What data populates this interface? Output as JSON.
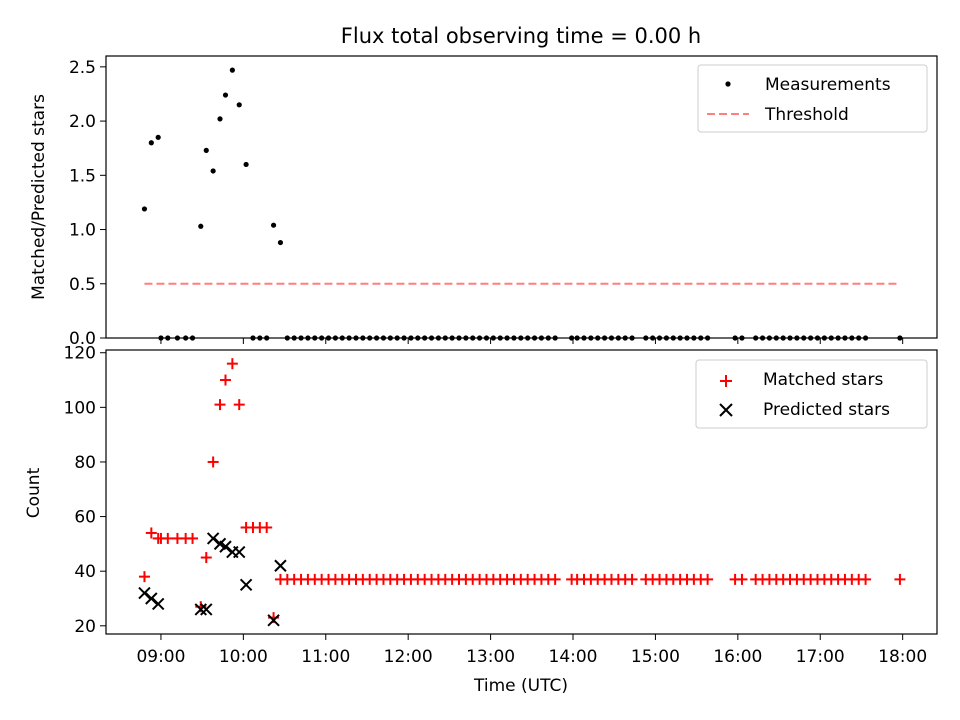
{
  "chart_data": [
    {
      "type": "scatter",
      "title": "Flux total observing time = 0.00 h",
      "xlabel": "",
      "ylabel": "Matched/Predicted stars",
      "xlim": [
        "08:20",
        "18:25"
      ],
      "ylim": [
        0,
        2.6
      ],
      "yticks": [
        "0.0",
        "0.5",
        "1.0",
        "1.5",
        "2.0",
        "2.5"
      ],
      "legend": "top-right",
      "series": [
        {
          "name": "Measurements",
          "color": "#000000",
          "marker": "dot",
          "points": [
            [
              "08:48",
              1.19
            ],
            [
              "08:53",
              1.8
            ],
            [
              "08:58",
              1.85
            ],
            [
              "09:00",
              0
            ],
            [
              "09:05",
              0
            ],
            [
              "09:12",
              0
            ],
            [
              "09:18",
              0
            ],
            [
              "09:23",
              0
            ],
            [
              "09:29",
              1.03
            ],
            [
              "09:33",
              1.73
            ],
            [
              "09:38",
              1.54
            ],
            [
              "09:43",
              2.02
            ],
            [
              "09:47",
              2.24
            ],
            [
              "09:52",
              2.47
            ],
            [
              "09:57",
              2.15
            ],
            [
              "10:02",
              1.6
            ],
            [
              "10:07",
              0
            ],
            [
              "10:12",
              0
            ],
            [
              "10:17",
              0
            ],
            [
              "10:22",
              1.04
            ],
            [
              "10:27",
              0.88
            ],
            [
              "10:32",
              0
            ],
            [
              "10:37",
              0
            ],
            [
              "10:42",
              0
            ],
            [
              "10:47",
              0
            ],
            [
              "10:52",
              0
            ],
            [
              "10:57",
              0
            ],
            [
              "11:02",
              0
            ],
            [
              "11:07",
              0
            ],
            [
              "11:12",
              0
            ],
            [
              "11:17",
              0
            ],
            [
              "11:22",
              0
            ],
            [
              "11:27",
              0
            ],
            [
              "11:32",
              0
            ],
            [
              "11:37",
              0
            ],
            [
              "11:42",
              0
            ],
            [
              "11:47",
              0
            ],
            [
              "11:52",
              0
            ],
            [
              "11:57",
              0
            ],
            [
              "12:02",
              0
            ],
            [
              "12:07",
              0
            ],
            [
              "12:12",
              0
            ],
            [
              "12:17",
              0
            ],
            [
              "12:22",
              0
            ],
            [
              "12:27",
              0
            ],
            [
              "12:32",
              0
            ],
            [
              "12:37",
              0
            ],
            [
              "12:42",
              0
            ],
            [
              "12:47",
              0
            ],
            [
              "12:52",
              0
            ],
            [
              "12:57",
              0
            ],
            [
              "13:02",
              0
            ],
            [
              "13:07",
              0
            ],
            [
              "13:12",
              0
            ],
            [
              "13:17",
              0
            ],
            [
              "13:22",
              0
            ],
            [
              "13:27",
              0
            ],
            [
              "13:32",
              0
            ],
            [
              "13:37",
              0
            ],
            [
              "13:42",
              0
            ],
            [
              "13:47",
              0
            ],
            [
              "13:59",
              0
            ],
            [
              "14:03",
              0
            ],
            [
              "14:08",
              0
            ],
            [
              "14:13",
              0
            ],
            [
              "14:18",
              0
            ],
            [
              "14:23",
              0
            ],
            [
              "14:28",
              0
            ],
            [
              "14:33",
              0
            ],
            [
              "14:38",
              0
            ],
            [
              "14:43",
              0
            ],
            [
              "14:53",
              0
            ],
            [
              "14:58",
              0
            ],
            [
              "15:03",
              0
            ],
            [
              "15:08",
              0
            ],
            [
              "15:13",
              0
            ],
            [
              "15:18",
              0
            ],
            [
              "15:23",
              0
            ],
            [
              "15:28",
              0
            ],
            [
              "15:33",
              0
            ],
            [
              "15:38",
              0
            ],
            [
              "15:58",
              0
            ],
            [
              "16:03",
              0
            ],
            [
              "16:13",
              0
            ],
            [
              "16:18",
              0
            ],
            [
              "16:23",
              0
            ],
            [
              "16:28",
              0
            ],
            [
              "16:33",
              0
            ],
            [
              "16:38",
              0
            ],
            [
              "16:43",
              0
            ],
            [
              "16:48",
              0
            ],
            [
              "16:53",
              0
            ],
            [
              "16:58",
              0
            ],
            [
              "17:03",
              0
            ],
            [
              "17:08",
              0
            ],
            [
              "17:13",
              0
            ],
            [
              "17:18",
              0
            ],
            [
              "17:23",
              0
            ],
            [
              "17:28",
              0
            ],
            [
              "17:33",
              0
            ],
            [
              "17:58",
              0
            ]
          ]
        },
        {
          "name": "Threshold",
          "color": "#ff7f7f",
          "style": "dashed-line",
          "points": [
            [
              "08:48",
              0.5
            ],
            [
              "17:58",
              0.5
            ]
          ]
        }
      ]
    },
    {
      "type": "scatter",
      "title": "",
      "xlabel": "Time (UTC)",
      "ylabel": "Count",
      "xlim": [
        "08:20",
        "18:25"
      ],
      "ylim": [
        17,
        121
      ],
      "yticks": [
        "20",
        "40",
        "60",
        "80",
        "100",
        "120"
      ],
      "xticks": [
        "09:00",
        "10:00",
        "11:00",
        "12:00",
        "13:00",
        "14:00",
        "15:00",
        "16:00",
        "17:00",
        "18:00"
      ],
      "legend": "top-right",
      "series": [
        {
          "name": "Matched stars",
          "color": "#ff0000",
          "marker": "plus",
          "points": [
            [
              "08:48",
              38
            ],
            [
              "08:53",
              54
            ],
            [
              "08:58",
              52
            ],
            [
              "09:00",
              52
            ],
            [
              "09:05",
              52
            ],
            [
              "09:12",
              52
            ],
            [
              "09:18",
              52
            ],
            [
              "09:23",
              52
            ],
            [
              "09:29",
              27
            ],
            [
              "09:33",
              45
            ],
            [
              "09:38",
              80
            ],
            [
              "09:43",
              101
            ],
            [
              "09:47",
              110
            ],
            [
              "09:52",
              116
            ],
            [
              "09:57",
              101
            ],
            [
              "10:02",
              56
            ],
            [
              "10:07",
              56
            ],
            [
              "10:12",
              56
            ],
            [
              "10:17",
              56
            ],
            [
              "10:22",
              23
            ],
            [
              "10:27",
              37
            ],
            [
              "10:32",
              37
            ],
            [
              "10:37",
              37
            ],
            [
              "10:42",
              37
            ],
            [
              "10:47",
              37
            ],
            [
              "10:52",
              37
            ],
            [
              "10:57",
              37
            ],
            [
              "11:02",
              37
            ],
            [
              "11:07",
              37
            ],
            [
              "11:12",
              37
            ],
            [
              "11:17",
              37
            ],
            [
              "11:22",
              37
            ],
            [
              "11:27",
              37
            ],
            [
              "11:32",
              37
            ],
            [
              "11:37",
              37
            ],
            [
              "11:42",
              37
            ],
            [
              "11:47",
              37
            ],
            [
              "11:52",
              37
            ],
            [
              "11:57",
              37
            ],
            [
              "12:02",
              37
            ],
            [
              "12:07",
              37
            ],
            [
              "12:12",
              37
            ],
            [
              "12:17",
              37
            ],
            [
              "12:22",
              37
            ],
            [
              "12:27",
              37
            ],
            [
              "12:32",
              37
            ],
            [
              "12:37",
              37
            ],
            [
              "12:42",
              37
            ],
            [
              "12:47",
              37
            ],
            [
              "12:52",
              37
            ],
            [
              "12:57",
              37
            ],
            [
              "13:02",
              37
            ],
            [
              "13:07",
              37
            ],
            [
              "13:12",
              37
            ],
            [
              "13:17",
              37
            ],
            [
              "13:22",
              37
            ],
            [
              "13:27",
              37
            ],
            [
              "13:32",
              37
            ],
            [
              "13:37",
              37
            ],
            [
              "13:42",
              37
            ],
            [
              "13:47",
              37
            ],
            [
              "13:59",
              37
            ],
            [
              "14:03",
              37
            ],
            [
              "14:08",
              37
            ],
            [
              "14:13",
              37
            ],
            [
              "14:18",
              37
            ],
            [
              "14:23",
              37
            ],
            [
              "14:28",
              37
            ],
            [
              "14:33",
              37
            ],
            [
              "14:38",
              37
            ],
            [
              "14:43",
              37
            ],
            [
              "14:53",
              37
            ],
            [
              "14:58",
              37
            ],
            [
              "15:03",
              37
            ],
            [
              "15:08",
              37
            ],
            [
              "15:13",
              37
            ],
            [
              "15:18",
              37
            ],
            [
              "15:23",
              37
            ],
            [
              "15:28",
              37
            ],
            [
              "15:33",
              37
            ],
            [
              "15:38",
              37
            ],
            [
              "15:58",
              37
            ],
            [
              "16:03",
              37
            ],
            [
              "16:13",
              37
            ],
            [
              "16:18",
              37
            ],
            [
              "16:23",
              37
            ],
            [
              "16:28",
              37
            ],
            [
              "16:33",
              37
            ],
            [
              "16:38",
              37
            ],
            [
              "16:43",
              37
            ],
            [
              "16:48",
              37
            ],
            [
              "16:53",
              37
            ],
            [
              "16:58",
              37
            ],
            [
              "17:03",
              37
            ],
            [
              "17:08",
              37
            ],
            [
              "17:13",
              37
            ],
            [
              "17:18",
              37
            ],
            [
              "17:23",
              37
            ],
            [
              "17:28",
              37
            ],
            [
              "17:33",
              37
            ],
            [
              "17:58",
              37
            ]
          ]
        },
        {
          "name": "Predicted stars",
          "color": "#000000",
          "marker": "x",
          "points": [
            [
              "08:48",
              32
            ],
            [
              "08:53",
              30
            ],
            [
              "08:58",
              28
            ],
            [
              "09:29",
              26
            ],
            [
              "09:33",
              26
            ],
            [
              "09:38",
              52
            ],
            [
              "09:43",
              50
            ],
            [
              "09:47",
              49
            ],
            [
              "09:52",
              47
            ],
            [
              "09:57",
              47
            ],
            [
              "10:02",
              35
            ],
            [
              "10:22",
              22
            ],
            [
              "10:27",
              42
            ]
          ]
        }
      ]
    }
  ]
}
